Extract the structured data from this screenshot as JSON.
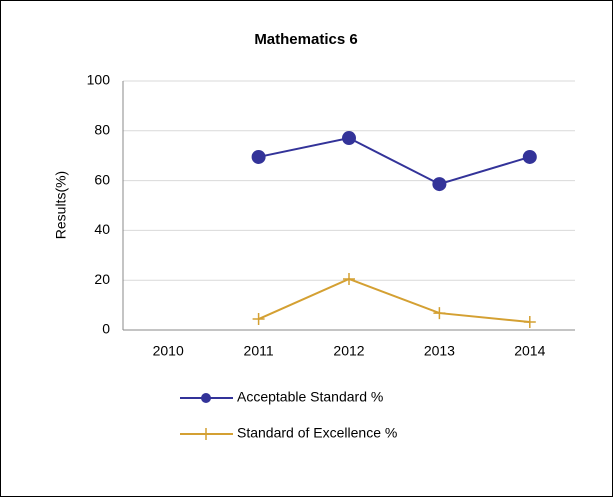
{
  "chart_data": {
    "type": "line",
    "title": "Mathematics 6",
    "y_label": "Results(%)",
    "categories": [
      "2010",
      "2011",
      "2012",
      "2013",
      "2014"
    ],
    "series": [
      {
        "name": "Acceptable Standard %",
        "color": "#333399",
        "marker": "circle",
        "values": [
          null,
          69.5,
          77.1,
          58.6,
          69.5
        ]
      },
      {
        "name": "Standard of Excellence %",
        "color": "#d4a032",
        "marker": "plus",
        "values": [
          null,
          4.4,
          20.5,
          6.8,
          3.2
        ]
      }
    ],
    "ylim": [
      0,
      100
    ],
    "yticks": [
      0,
      20,
      40,
      60,
      80,
      100
    ],
    "grid": true,
    "legend": "bottom"
  }
}
